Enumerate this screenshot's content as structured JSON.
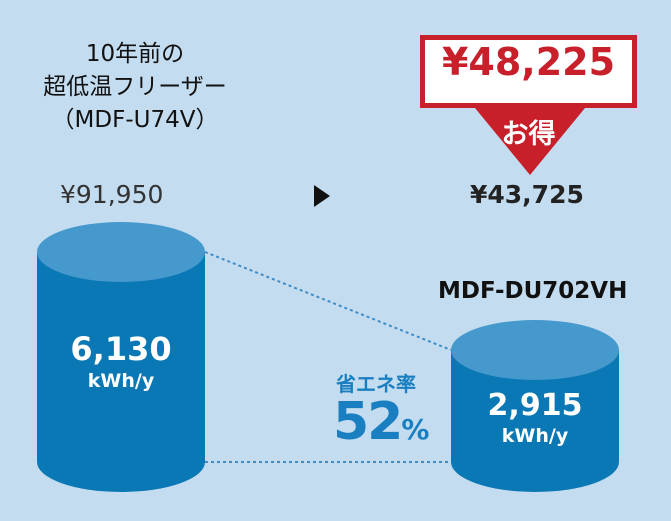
{
  "old_model": {
    "title_line1": "10年前の",
    "title_line2": "超低温フリーザー",
    "title_line3": "（MDF-U74V）",
    "price": "¥91,950",
    "value": "6,130",
    "unit": "kWh/y"
  },
  "new_model": {
    "name": "MDF-DU702VH",
    "price": "¥43,725",
    "value": "2,915",
    "unit": "kWh/y"
  },
  "savings": {
    "amount": "¥48,225",
    "label": "お得",
    "rate_label": "省エネ率",
    "rate_value": "52",
    "rate_unit": "%"
  },
  "colors": {
    "background": "#c3dcf0",
    "cylinder_body": "#0a78b4",
    "cylinder_top": "#4599cc",
    "badge_red": "#c8202b",
    "accent_blue": "#1a7fc0"
  }
}
